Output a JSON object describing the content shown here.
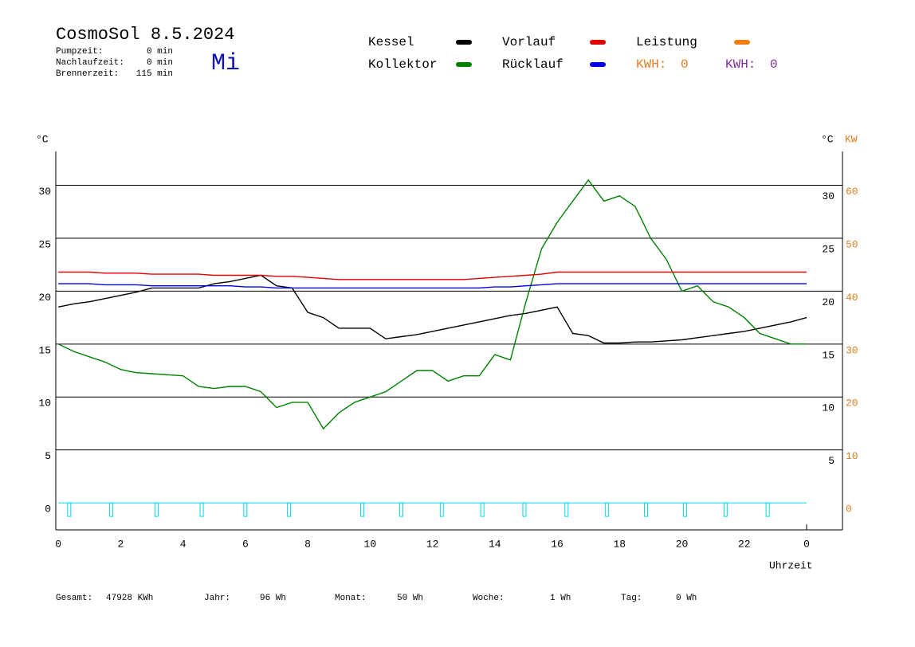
{
  "header": {
    "title": "CosmoSol 8.5.2024",
    "day": "Mi",
    "info": [
      {
        "label": "Pumpzeit:",
        "value": "0 min"
      },
      {
        "label": "Nachlaufzeit:",
        "value": "0 min"
      },
      {
        "label": "Brennerzeit:",
        "value": "115 min"
      }
    ]
  },
  "chart_data": {
    "type": "line",
    "y_label": "°C",
    "y2_label_c": "°C",
    "y2_label": "KW",
    "x_label": "Uhrzeit",
    "x": [
      0,
      0.5,
      1,
      1.5,
      2,
      2.5,
      3,
      3.5,
      4,
      4.5,
      5,
      5.5,
      6,
      6.5,
      7,
      7.5,
      8,
      8.5,
      9,
      9.5,
      10,
      10.5,
      11,
      11.5,
      12,
      12.5,
      13,
      13.5,
      14,
      14.5,
      15,
      15.5,
      16,
      16.5,
      17,
      17.5,
      18,
      18.5,
      19,
      19.5,
      20,
      20.5,
      21,
      21.5,
      22,
      22.5,
      23,
      23.5,
      24
    ],
    "xlim": [
      -0.08,
      25.15
    ],
    "xticks": [
      0,
      2,
      4,
      6,
      8,
      10,
      12,
      14,
      16,
      18,
      20,
      22,
      {
        "value": 24,
        "label": "0"
      }
    ],
    "ylim": [
      -2.55,
      33.2
    ],
    "yticks": [
      0,
      5,
      10,
      15,
      20,
      25,
      30
    ],
    "y2lim": [
      -5.1,
      66.4
    ],
    "y2ticks": [
      0,
      10,
      20,
      30,
      40,
      50,
      60
    ],
    "y2_color": "#e08020",
    "grid": true,
    "series": [
      {
        "name": "Kessel",
        "color": "#000000",
        "values": [
          18.5,
          18.8,
          19.0,
          19.3,
          19.6,
          19.9,
          20.3,
          20.3,
          20.3,
          20.3,
          20.7,
          20.9,
          21.2,
          21.5,
          20.5,
          20.3,
          18.0,
          17.5,
          16.5,
          16.5,
          16.5,
          15.5,
          15.7,
          15.9,
          16.2,
          16.5,
          16.8,
          17.1,
          17.4,
          17.7,
          17.9,
          18.2,
          18.5,
          16.0,
          15.8,
          15.1,
          15.1,
          15.2,
          15.2,
          15.3,
          15.4,
          15.6,
          15.8,
          16.0,
          16.2,
          16.5,
          16.8,
          17.1,
          17.5
        ]
      },
      {
        "name": "Kollektor",
        "color": "#008000",
        "values": [
          15.0,
          14.3,
          13.8,
          13.3,
          12.6,
          12.3,
          12.2,
          12.1,
          12.0,
          11.0,
          10.8,
          11.0,
          11.0,
          10.5,
          9.0,
          9.5,
          9.5,
          7.0,
          8.5,
          9.5,
          10.0,
          10.5,
          11.5,
          12.5,
          12.5,
          11.5,
          12.0,
          12.0,
          14.0,
          13.5,
          19.0,
          24.0,
          26.5,
          28.5,
          30.5,
          28.5,
          29.0,
          28.0,
          25.0,
          23.0,
          20.0,
          20.5,
          19.0,
          18.5,
          17.5,
          16.0,
          15.5,
          15.0,
          15.0
        ]
      },
      {
        "name": "Vorlauf",
        "color": "#e00000",
        "values": [
          21.8,
          21.8,
          21.8,
          21.7,
          21.7,
          21.7,
          21.6,
          21.6,
          21.6,
          21.6,
          21.5,
          21.5,
          21.5,
          21.5,
          21.4,
          21.4,
          21.3,
          21.2,
          21.1,
          21.1,
          21.1,
          21.1,
          21.1,
          21.1,
          21.1,
          21.1,
          21.1,
          21.2,
          21.3,
          21.4,
          21.5,
          21.6,
          21.8,
          21.8,
          21.8,
          21.8,
          21.8,
          21.8,
          21.8,
          21.8,
          21.8,
          21.8,
          21.8,
          21.8,
          21.8,
          21.8,
          21.8,
          21.8,
          21.8
        ]
      },
      {
        "name": "Rücklauf",
        "color": "#0000e0",
        "values": [
          20.7,
          20.7,
          20.7,
          20.6,
          20.6,
          20.6,
          20.5,
          20.5,
          20.5,
          20.5,
          20.5,
          20.5,
          20.4,
          20.4,
          20.3,
          20.3,
          20.3,
          20.3,
          20.3,
          20.3,
          20.3,
          20.3,
          20.3,
          20.3,
          20.3,
          20.3,
          20.3,
          20.3,
          20.4,
          20.4,
          20.5,
          20.6,
          20.7,
          20.7,
          20.7,
          20.7,
          20.7,
          20.7,
          20.7,
          20.7,
          20.7,
          20.7,
          20.7,
          20.7,
          20.7,
          20.7,
          20.7,
          20.7,
          20.7
        ]
      },
      {
        "name": "Leistung",
        "color": "#f08010",
        "values": [
          null,
          null,
          null,
          null,
          null,
          null,
          null,
          null,
          null,
          null,
          null,
          null,
          null,
          null,
          null,
          null,
          null,
          null,
          null,
          null,
          null,
          null,
          null,
          null,
          null,
          null,
          null,
          null,
          null,
          null,
          null,
          null,
          null,
          null,
          null,
          null,
          null,
          null,
          null,
          null,
          null,
          null,
          null,
          null,
          null,
          null,
          null,
          null,
          null
        ]
      }
    ],
    "kwh": [
      {
        "label": "KWH:",
        "value": 0,
        "color": "#e08020"
      },
      {
        "label": "KWH:",
        "value": 0,
        "color": "#8030a0"
      }
    ],
    "pulses": {
      "color": "#00d8e8",
      "x": [
        0.35,
        1.7,
        3.15,
        4.6,
        6.0,
        7.4,
        9.75,
        11.0,
        12.3,
        13.6,
        14.95,
        16.3,
        17.6,
        18.85,
        20.1,
        21.4,
        22.75
      ]
    }
  },
  "footer": [
    {
      "label": "Gesamt:",
      "value": "47928 KWh"
    },
    {
      "label": "Jahr:",
      "value": "96 Wh"
    },
    {
      "label": "Monat:",
      "value": "50 Wh"
    },
    {
      "label": "Woche:",
      "value": "1 Wh"
    },
    {
      "label": "Tag:",
      "value": "0 Wh"
    }
  ]
}
